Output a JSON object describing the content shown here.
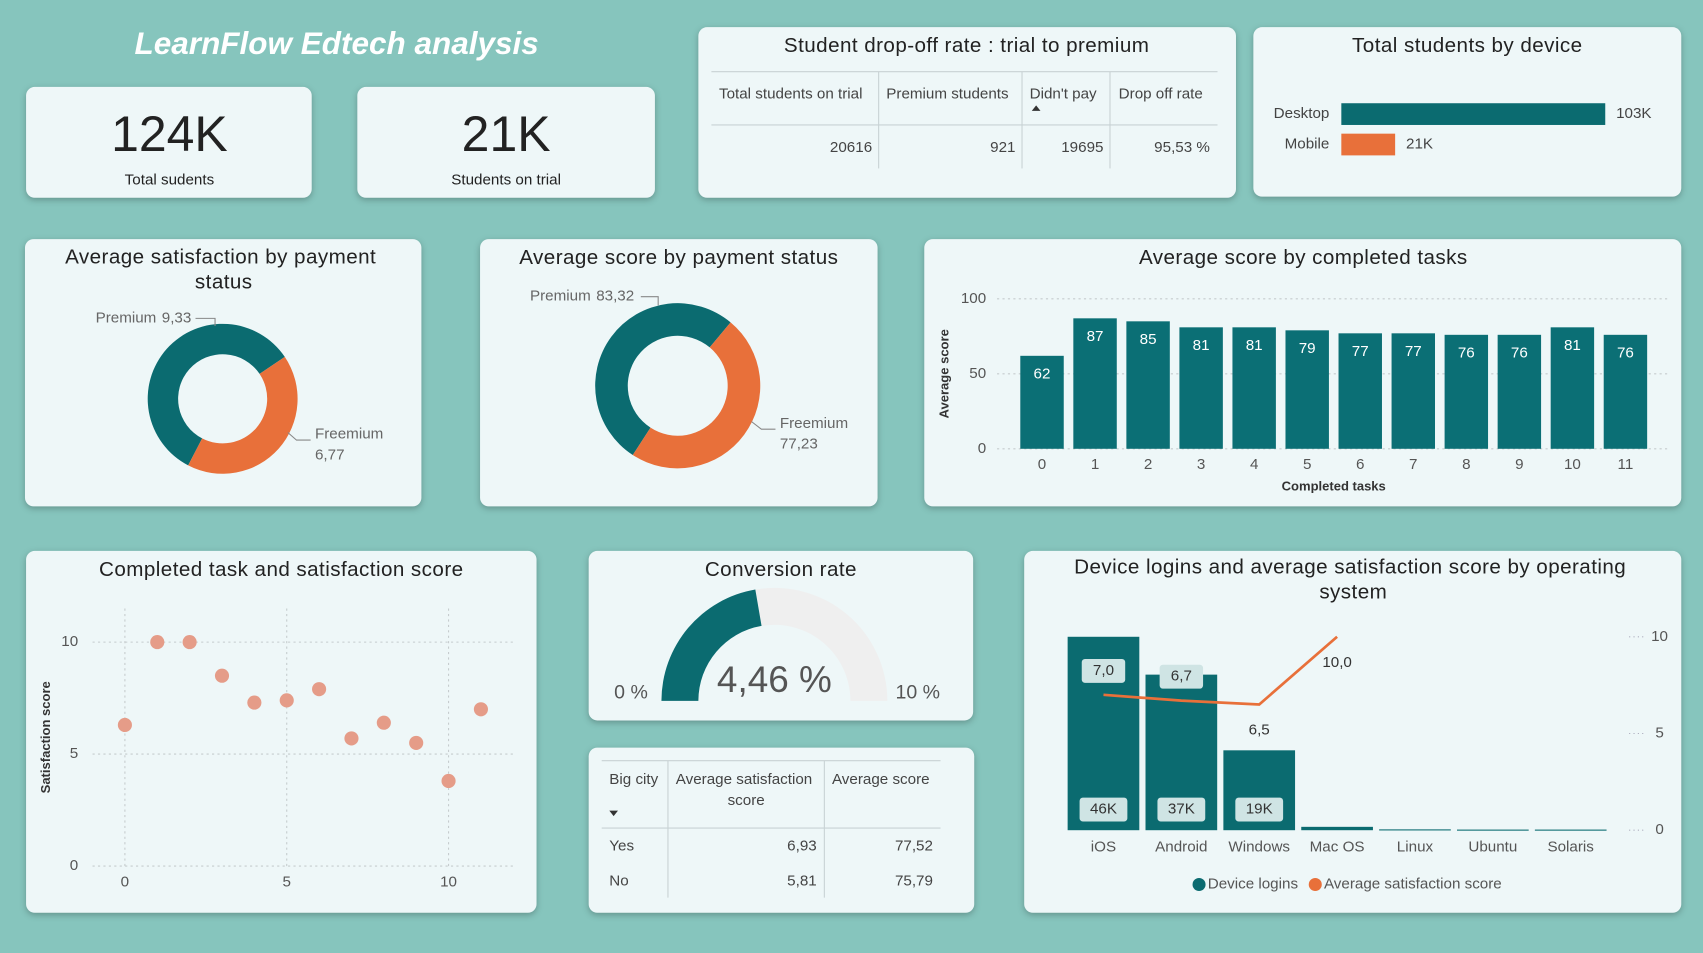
{
  "title": "LearnFlow Edtech analysis",
  "kpis": [
    {
      "value": "124K",
      "label": "Total sudents"
    },
    {
      "value": "21K",
      "label": "Students on trial"
    }
  ],
  "tables": [
    {
      "title": "Student drop-off rate : trial to premium",
      "columns": [
        "Total students on trial",
        "Premium students",
        "Didn't pay",
        "Drop off rate"
      ],
      "rows": [
        [
          "20616",
          "921",
          "19695",
          "95,53 %"
        ]
      ]
    },
    {
      "columns": [
        "Big city",
        "Average satisfaction score",
        "Average score"
      ],
      "rows": [
        [
          "Yes",
          "6,93",
          "77,52"
        ],
        [
          "No",
          "5,81",
          "75,79"
        ]
      ]
    }
  ],
  "chart_data": [
    {
      "type": "hbar",
      "title": "Total students by device",
      "categories": [
        "Desktop",
        "Mobile"
      ],
      "values": [
        103000,
        21000
      ],
      "value_labels": [
        "103K",
        "21K"
      ],
      "colors": [
        "#0b6b70",
        "#e8703a"
      ]
    },
    {
      "type": "donut",
      "title": "Average satisfaction by payment status",
      "categories": [
        "Premium",
        "Freemium"
      ],
      "values": [
        9.33,
        6.77
      ],
      "value_labels": [
        "9,33",
        "6,77"
      ],
      "colors": [
        "#0b6b70",
        "#e8703a"
      ]
    },
    {
      "type": "donut",
      "title": "Average score by payment status",
      "categories": [
        "Premium",
        "Freemium"
      ],
      "values": [
        83.32,
        77.23
      ],
      "value_labels": [
        "83,32",
        "77,23"
      ],
      "colors": [
        "#0b6b70",
        "#e8703a"
      ]
    },
    {
      "type": "bar",
      "title": "Average score by completed tasks",
      "categories": [
        0,
        1,
        2,
        3,
        4,
        5,
        6,
        7,
        8,
        9,
        10,
        11
      ],
      "values": [
        62,
        87,
        85,
        81,
        81,
        79,
        77,
        77,
        76,
        76,
        81,
        76
      ],
      "xlabel": "Completed tasks",
      "ylabel": "Average score",
      "ylim": [
        0,
        100
      ],
      "yticks": [
        0,
        50,
        100
      ],
      "grid": true,
      "color": "#0b6f75"
    },
    {
      "type": "scatter",
      "title": "Completed task and satisfaction score",
      "ylabel": "Satisfaction score",
      "x": [
        0,
        1,
        2,
        3,
        4,
        5,
        6,
        7,
        8,
        9,
        10,
        11
      ],
      "values": [
        6.3,
        10,
        10,
        8.5,
        7.3,
        7.4,
        7.9,
        5.7,
        6.4,
        5.5,
        3.8,
        7.0
      ],
      "xlim": [
        -1,
        12
      ],
      "xticks": [
        0,
        5,
        10
      ],
      "ylim": [
        0,
        11.5
      ],
      "yticks": [
        0,
        5,
        10
      ],
      "grid": true,
      "color": "#e59c88"
    },
    {
      "type": "gauge",
      "title": "Conversion rate",
      "value": 4.46,
      "value_label": "4,46 %",
      "ylim": [
        0,
        10
      ],
      "yticks": [
        {
          "value": 0,
          "label": "0 %"
        },
        {
          "value": 10,
          "label": "10 %"
        }
      ],
      "colors": [
        "#0b6b70",
        "#efefef"
      ]
    },
    {
      "type": "combo",
      "title": "Device logins and average satisfaction score by operating system",
      "categories": [
        "iOS",
        "Android",
        "Windows",
        "Mac OS",
        "Linux",
        "Ubuntu",
        "Solaris"
      ],
      "series": [
        {
          "name": "Device logins",
          "color": "#0b6b70",
          "values": [
            46000,
            37000,
            19000,
            800,
            200,
            150,
            150
          ],
          "value_labels": [
            "46K",
            "37K",
            "19K",
            null,
            null,
            null,
            null
          ]
        },
        {
          "name": "Average satisfaction score",
          "color": "#e8703a",
          "axis": "y2",
          "values": [
            7.0,
            6.7,
            6.5,
            10.0,
            null,
            null,
            null
          ],
          "value_labels": [
            "7,0",
            "6,7",
            "6,5",
            "10,0",
            null,
            null,
            null
          ]
        }
      ],
      "ylim": [
        0,
        46000
      ],
      "y2lim": [
        0,
        10
      ],
      "y2ticks": [
        0,
        5,
        10
      ],
      "legend": "bottom"
    }
  ]
}
